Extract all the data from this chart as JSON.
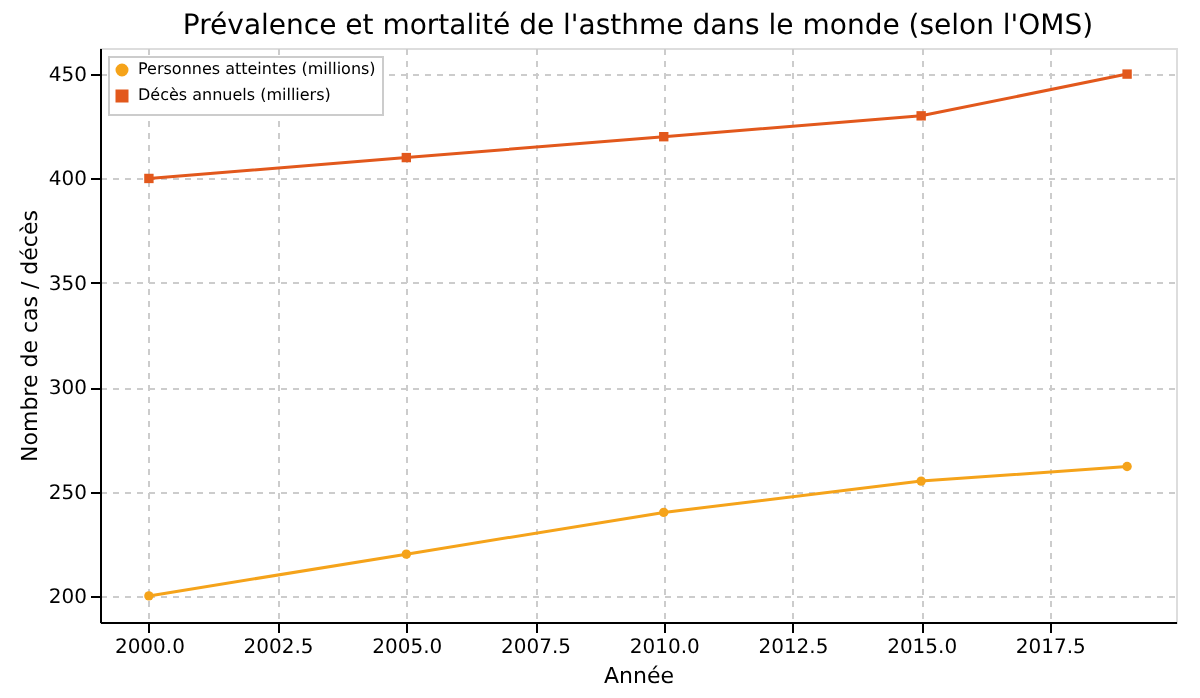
{
  "chart_data": {
    "type": "line",
    "title": "Prévalence et mortalité de l'asthme dans le monde (selon l'OMS)",
    "xlabel": "Année",
    "ylabel": "Nombre de cas / décès",
    "x": [
      2000,
      2005,
      2010,
      2015,
      2019
    ],
    "series": [
      {
        "name": "Personnes atteintes (millions)",
        "color": "#f5a31a",
        "marker": "circle",
        "values": [
          200,
          220,
          240,
          255,
          262
        ]
      },
      {
        "name": "Décès annuels (milliers)",
        "color": "#e2581c",
        "marker": "square",
        "values": [
          400,
          410,
          420,
          430,
          450
        ]
      }
    ],
    "xlim": [
      1999.05,
      2019.95
    ],
    "ylim": [
      187.5,
      462.5
    ],
    "xticks": [
      {
        "value": 2000,
        "label": "2000.0"
      },
      {
        "value": 2002.5,
        "label": "2002.5"
      },
      {
        "value": 2005,
        "label": "2005.0"
      },
      {
        "value": 2007.5,
        "label": "2007.5"
      },
      {
        "value": 2010,
        "label": "2010.0"
      },
      {
        "value": 2012.5,
        "label": "2012.5"
      },
      {
        "value": 2015,
        "label": "2015.0"
      },
      {
        "value": 2017.5,
        "label": "2017.5"
      }
    ],
    "yticks": [
      200,
      250,
      300,
      350,
      400,
      450
    ],
    "grid": true,
    "legend": "top left",
    "line_style": "solid"
  }
}
